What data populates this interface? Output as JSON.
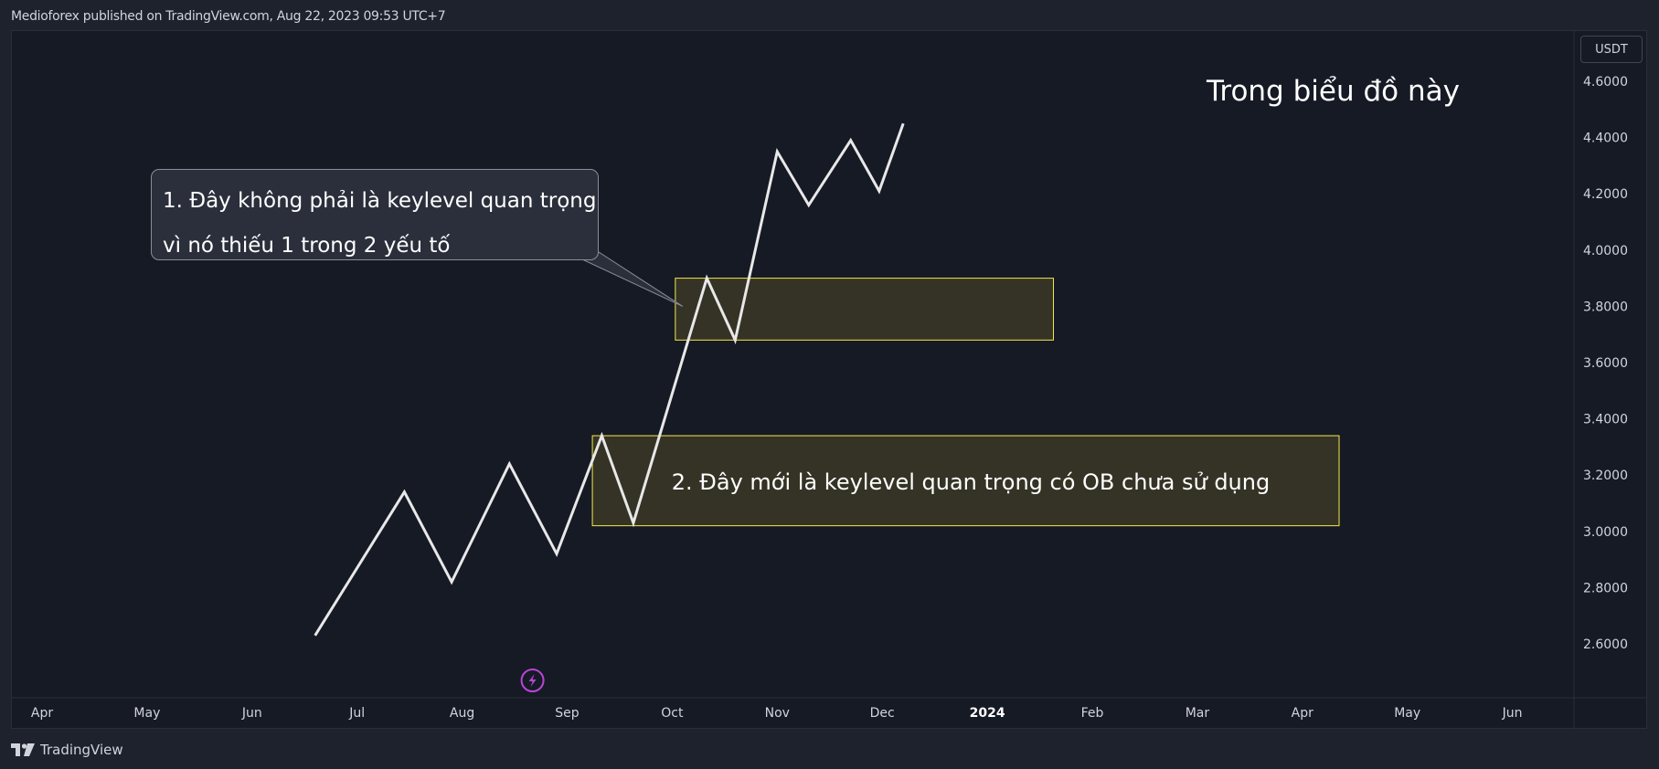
{
  "header": {
    "published": "Medioforex published on TradingView.com, Aug 22, 2023 09:53 UTC+7"
  },
  "footer": {
    "brand": "TradingView",
    "logo_icon": "tradingview-logo-icon"
  },
  "currency_badge": "USDT",
  "colors": {
    "background": "#161a25",
    "line": "#e8e8e8",
    "zone_fill": "#3a3826",
    "zone_border": "#f5e94a",
    "event_icon": "#b845d6"
  },
  "annotations": {
    "title": "Trong biểu đồ này",
    "callout_line1": "1. Đây không phải là keylevel quan trọng",
    "callout_line2": "vì nó thiếu 1 trong 2 yếu tố",
    "zone2_label": "2. Đây mới là keylevel quan trọng có OB chưa sử dụng"
  },
  "chart_data": {
    "type": "line",
    "x_axis_labels": [
      "Apr",
      "May",
      "Jun",
      "Jul",
      "Aug",
      "Sep",
      "Oct",
      "Nov",
      "Dec",
      "2024",
      "Feb",
      "Mar",
      "Apr",
      "May",
      "Jun"
    ],
    "y_axis_labels": [
      "4.6000",
      "4.4000",
      "4.2000",
      "4.0000",
      "3.8000",
      "3.6000",
      "3.4000",
      "3.2000",
      "3.0000",
      "2.8000",
      "2.6000"
    ],
    "ylim": [
      2.4,
      4.7
    ],
    "grid": false,
    "series": [
      {
        "x": [
          2.6,
          3.45,
          3.9,
          4.45,
          4.9,
          5.33,
          5.63,
          6.33,
          6.6,
          7.0,
          7.3,
          7.7,
          7.97,
          8.2,
          8.5
        ],
        "values": [
          2.63,
          3.14,
          2.82,
          3.24,
          2.92,
          3.34,
          3.03,
          3.9,
          3.68,
          4.35,
          4.16,
          4.39,
          4.21,
          4.45,
          4.45
        ]
      }
    ],
    "zones": [
      {
        "x_start": 6.03,
        "x_end": 9.63,
        "y_low": 3.68,
        "y_high": 3.9,
        "label": "1"
      },
      {
        "x_start": 5.24,
        "x_end": 12.35,
        "y_low": 3.02,
        "y_high": 3.34,
        "label": "2"
      }
    ],
    "event_marker": {
      "x": 4.67,
      "icon": "lightning-icon"
    }
  }
}
